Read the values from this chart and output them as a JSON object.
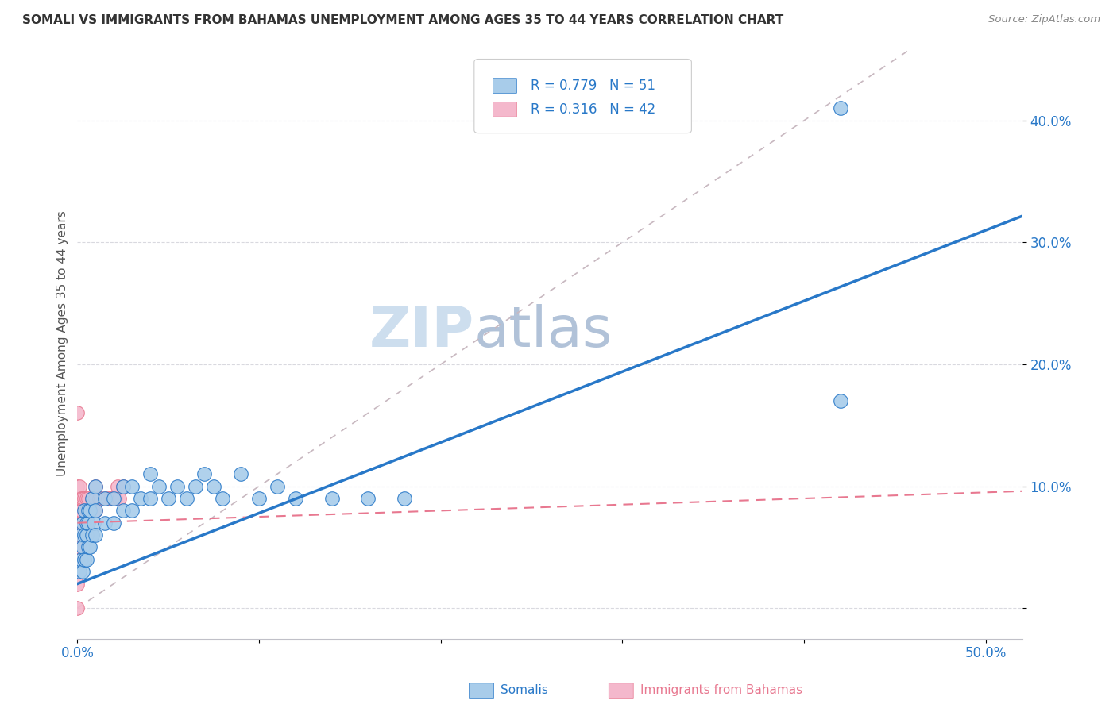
{
  "title": "SOMALI VS IMMIGRANTS FROM BAHAMAS UNEMPLOYMENT AMONG AGES 35 TO 44 YEARS CORRELATION CHART",
  "source": "Source: ZipAtlas.com",
  "ylabel": "Unemployment Among Ages 35 to 44 years",
  "xlim": [
    0.0,
    0.52
  ],
  "ylim": [
    -0.025,
    0.46
  ],
  "xticks": [
    0.0,
    0.1,
    0.2,
    0.3,
    0.4,
    0.5
  ],
  "yticks": [
    0.0,
    0.1,
    0.2,
    0.3,
    0.4
  ],
  "xticklabels": [
    "0.0%",
    "",
    "",
    "",
    "",
    "50.0%"
  ],
  "yticklabels_right": [
    "",
    "10.0%",
    "20.0%",
    "30.0%",
    "40.0%"
  ],
  "somali_R": 0.779,
  "somali_N": 51,
  "bahamas_R": 0.316,
  "bahamas_N": 42,
  "somali_color": "#A8CCEA",
  "bahamas_color": "#F4B8CC",
  "somali_line_color": "#2878C8",
  "bahamas_line_color": "#E87890",
  "diagonal_color": "#C8B8C0",
  "watermark_zip_color": "#B8D0E8",
  "watermark_atlas_color": "#90A8C8",
  "background_color": "#FFFFFF",
  "somali_line_slope": 0.58,
  "somali_line_intercept": 0.02,
  "bahamas_line_slope": 0.05,
  "bahamas_line_intercept": 0.07,
  "somali_x": [
    0.001,
    0.002,
    0.002,
    0.003,
    0.003,
    0.003,
    0.004,
    0.004,
    0.004,
    0.005,
    0.005,
    0.005,
    0.006,
    0.006,
    0.006,
    0.007,
    0.007,
    0.008,
    0.008,
    0.009,
    0.01,
    0.01,
    0.01,
    0.015,
    0.015,
    0.02,
    0.02,
    0.025,
    0.025,
    0.03,
    0.03,
    0.035,
    0.04,
    0.04,
    0.045,
    0.05,
    0.055,
    0.06,
    0.065,
    0.07,
    0.075,
    0.08,
    0.09,
    0.1,
    0.11,
    0.12,
    0.14,
    0.16,
    0.18,
    0.42,
    0.42
  ],
  "somali_y": [
    0.03,
    0.04,
    0.06,
    0.03,
    0.05,
    0.07,
    0.04,
    0.06,
    0.08,
    0.04,
    0.06,
    0.07,
    0.05,
    0.07,
    0.08,
    0.05,
    0.08,
    0.06,
    0.09,
    0.07,
    0.06,
    0.08,
    0.1,
    0.07,
    0.09,
    0.07,
    0.09,
    0.08,
    0.1,
    0.08,
    0.1,
    0.09,
    0.09,
    0.11,
    0.1,
    0.09,
    0.1,
    0.09,
    0.1,
    0.11,
    0.1,
    0.09,
    0.11,
    0.09,
    0.1,
    0.09,
    0.09,
    0.09,
    0.09,
    0.41,
    0.17
  ],
  "bahamas_x": [
    0.0,
    0.0,
    0.0,
    0.0,
    0.0,
    0.0,
    0.0,
    0.0,
    0.0,
    0.0,
    0.001,
    0.001,
    0.001,
    0.001,
    0.001,
    0.002,
    0.002,
    0.002,
    0.003,
    0.003,
    0.004,
    0.004,
    0.005,
    0.005,
    0.006,
    0.007,
    0.008,
    0.009,
    0.01,
    0.01,
    0.01,
    0.012,
    0.013,
    0.015,
    0.017,
    0.018,
    0.019,
    0.02,
    0.021,
    0.022,
    0.023,
    0.025
  ],
  "bahamas_y": [
    0.0,
    0.02,
    0.04,
    0.05,
    0.06,
    0.07,
    0.08,
    0.09,
    0.1,
    0.16,
    0.05,
    0.07,
    0.08,
    0.09,
    0.1,
    0.06,
    0.08,
    0.09,
    0.07,
    0.09,
    0.07,
    0.09,
    0.08,
    0.09,
    0.09,
    0.08,
    0.09,
    0.08,
    0.08,
    0.09,
    0.1,
    0.09,
    0.09,
    0.09,
    0.09,
    0.09,
    0.09,
    0.09,
    0.09,
    0.1,
    0.09,
    0.1
  ]
}
